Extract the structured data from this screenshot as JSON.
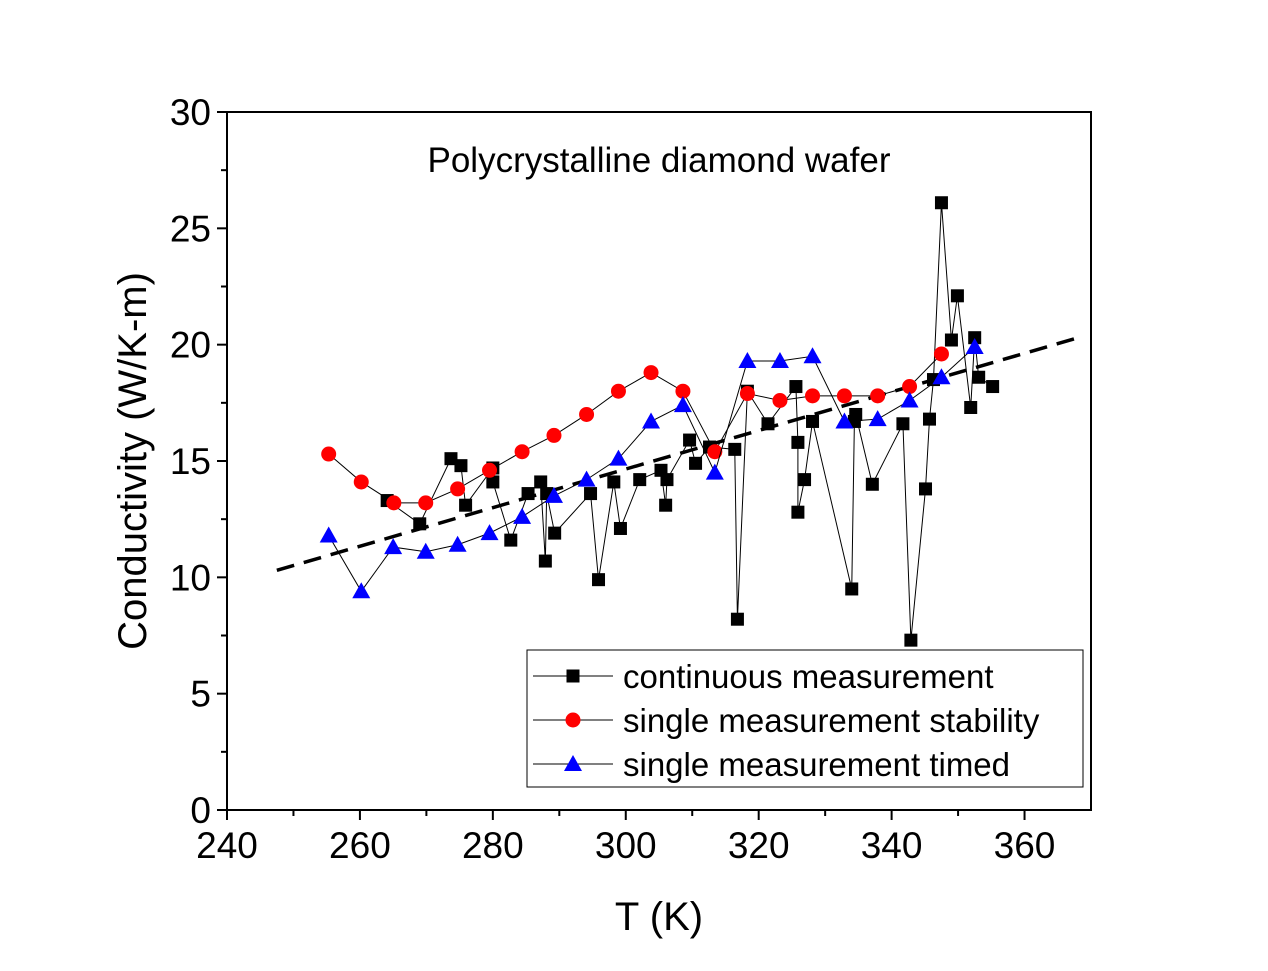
{
  "chart_data": {
    "type": "scatter",
    "title": "Polycrystalline diamond wafer",
    "xlabel": "T (K)",
    "ylabel": "Conductivity (W/K-m)",
    "xlim": [
      240,
      370
    ],
    "ylim": [
      0,
      30
    ],
    "xticks": [
      240,
      260,
      280,
      300,
      320,
      340,
      360
    ],
    "yticks": [
      0,
      5,
      10,
      15,
      20,
      25,
      30
    ],
    "grid": false,
    "legend_position": "bottom-right",
    "series": [
      {
        "name": "continuous measurement",
        "marker": "square",
        "color": "#000000",
        "x": [
          264.1,
          269.0,
          273.7,
          275.2,
          275.9,
          280.0,
          280.0,
          282.7,
          285.3,
          287.2,
          287.9,
          288.1,
          289.3,
          294.7,
          295.9,
          298.2,
          299.2,
          302.1,
          305.3,
          306.0,
          306.2,
          309.6,
          310.5,
          312.6,
          316.4,
          316.8,
          318.3,
          321.4,
          325.6,
          325.9,
          325.9,
          326.9,
          328.1,
          334.0,
          334.4,
          334.6,
          337.1,
          341.7,
          342.9,
          345.1,
          345.7,
          346.3,
          347.5,
          349.0,
          349.9,
          351.9,
          352.5,
          353.1,
          355.2
        ],
        "y": [
          13.3,
          12.3,
          15.1,
          14.8,
          13.1,
          14.7,
          14.1,
          11.6,
          13.6,
          14.1,
          10.7,
          13.6,
          11.9,
          13.6,
          9.9,
          14.1,
          12.1,
          14.2,
          14.6,
          13.1,
          14.2,
          15.9,
          14.9,
          15.6,
          15.5,
          8.2,
          18.0,
          16.6,
          18.2,
          15.8,
          12.8,
          14.2,
          16.7,
          9.5,
          16.7,
          17.0,
          14.0,
          16.6,
          7.3,
          13.8,
          16.8,
          18.5,
          26.1,
          20.2,
          22.1,
          17.3,
          20.3,
          18.6,
          18.2
        ]
      },
      {
        "name": "single measurement stability",
        "marker": "circle",
        "color": "#ff0000",
        "x": [
          255.3,
          260.2,
          265.1,
          269.9,
          274.7,
          279.5,
          284.4,
          289.2,
          294.1,
          298.9,
          303.8,
          308.6,
          313.4,
          318.3,
          323.2,
          328.1,
          332.9,
          337.9,
          342.7,
          347.5
        ],
        "y": [
          15.3,
          14.1,
          13.2,
          13.2,
          13.8,
          14.6,
          15.4,
          16.1,
          17.0,
          18.0,
          18.8,
          18.0,
          15.4,
          17.9,
          17.6,
          17.8,
          17.8,
          17.8,
          18.2,
          19.6
        ]
      },
      {
        "name": "single measurement timed",
        "marker": "triangle",
        "color": "#0000ff",
        "x": [
          255.3,
          260.2,
          265.0,
          269.9,
          274.7,
          279.5,
          284.4,
          289.2,
          294.1,
          298.9,
          303.8,
          308.6,
          313.4,
          318.3,
          323.2,
          328.1,
          332.9,
          337.9,
          342.7,
          347.5,
          352.5
        ],
        "y": [
          11.8,
          9.4,
          11.3,
          11.1,
          11.4,
          11.9,
          12.6,
          13.5,
          14.2,
          15.1,
          16.7,
          17.4,
          14.5,
          19.3,
          19.3,
          19.5,
          16.7,
          16.8,
          17.6,
          18.6,
          19.9
        ]
      }
    ],
    "fit_line": {
      "style": "dashed",
      "color": "#000000",
      "x": [
        247.5,
        368.1
      ],
      "y": [
        10.3,
        20.3
      ]
    }
  }
}
